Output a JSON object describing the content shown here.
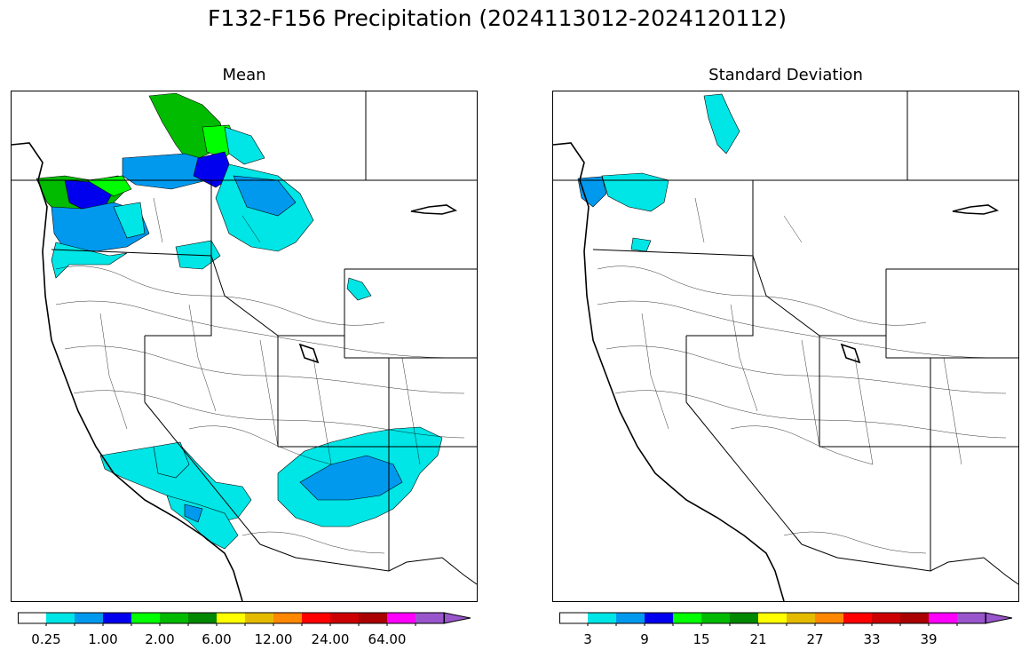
{
  "figure": {
    "title": "F132-F156 Precipitation (2024113012-2024120112)"
  },
  "panels": [
    {
      "title": "Mean",
      "colorbar": {
        "colors": [
          "#ffffff",
          "#00e5e5",
          "#0099ee",
          "#0000ee",
          "#00ff00",
          "#00bb00",
          "#008800",
          "#ffff00",
          "#e5bb00",
          "#ff8800",
          "#ff0000",
          "#cc0000",
          "#aa0000",
          "#ff00ff",
          "#9955cc"
        ],
        "labels": [
          "0.25",
          "1.00",
          "2.00",
          "6.00",
          "12.00",
          "24.00",
          "64.00"
        ]
      },
      "shaded_regions": [
        {
          "region": "Vancouver Island / Olympic coast",
          "color": "green"
        },
        {
          "region": "Puget Sound / Cascades",
          "color": "blue"
        },
        {
          "region": "Southern British Columbia",
          "color": "light blue"
        },
        {
          "region": "Northern Idaho / western Montana",
          "color": "cyan"
        },
        {
          "region": "Southern California coast",
          "color": "cyan"
        },
        {
          "region": "Arizona / New Mexico highlands",
          "color": "cyan"
        }
      ]
    },
    {
      "title": "Standard Deviation",
      "colorbar": {
        "colors": [
          "#ffffff",
          "#00e5e5",
          "#0099ee",
          "#0000ee",
          "#00ff00",
          "#00bb00",
          "#008800",
          "#ffff00",
          "#e5bb00",
          "#ff8800",
          "#ff0000",
          "#cc0000",
          "#aa0000",
          "#ff00ff",
          "#9955cc"
        ],
        "labels": [
          "3",
          "9",
          "15",
          "21",
          "27",
          "33",
          "39"
        ]
      },
      "shaded_regions": [
        {
          "region": "Olympic Peninsula",
          "color": "light blue"
        },
        {
          "region": "Puget Sound",
          "color": "cyan"
        },
        {
          "region": "Southern British Columbia",
          "color": "cyan"
        }
      ]
    }
  ]
}
